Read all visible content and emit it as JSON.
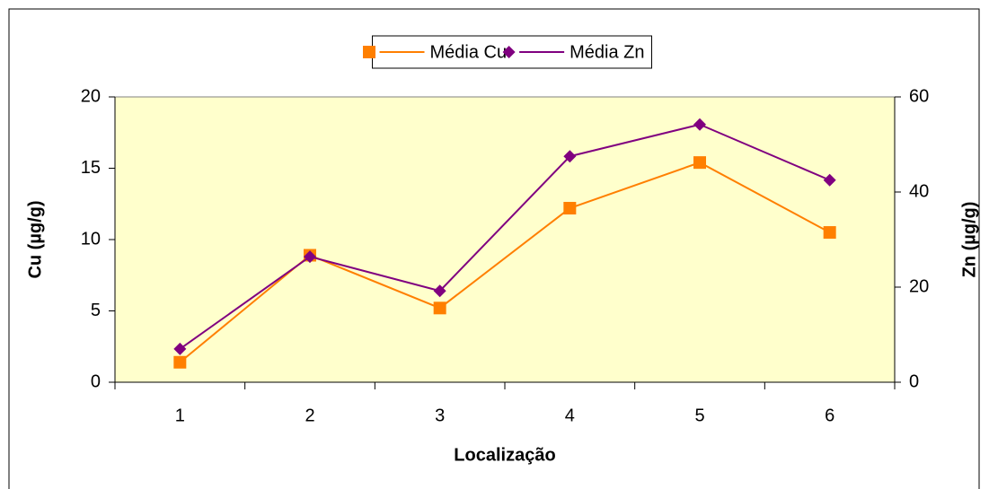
{
  "chart_data": {
    "type": "line",
    "categories": [
      "1",
      "2",
      "3",
      "4",
      "5",
      "6"
    ],
    "x_label": "Localização",
    "y_label": "Cu (µg/g)",
    "y2_label": "Zn (µg/g)",
    "ylim": [
      0,
      20
    ],
    "yticks": [
      0,
      5,
      10,
      15,
      20
    ],
    "y2lim": [
      0,
      60
    ],
    "y2ticks": [
      0,
      20,
      40,
      60
    ],
    "legend": "top",
    "plot_background": "#ffffcc",
    "series": [
      {
        "name": "Média Cu",
        "color": "#ff7f00",
        "marker": "square",
        "values": [
          1.4,
          8.9,
          5.2,
          12.2,
          15.4,
          10.5
        ]
      },
      {
        "name": "Média Zn",
        "color": "#800080",
        "marker": "diamond",
        "axis": "y2",
        "values": [
          7.0,
          26.4,
          19.2,
          47.5,
          54.2,
          42.5
        ]
      }
    ]
  }
}
